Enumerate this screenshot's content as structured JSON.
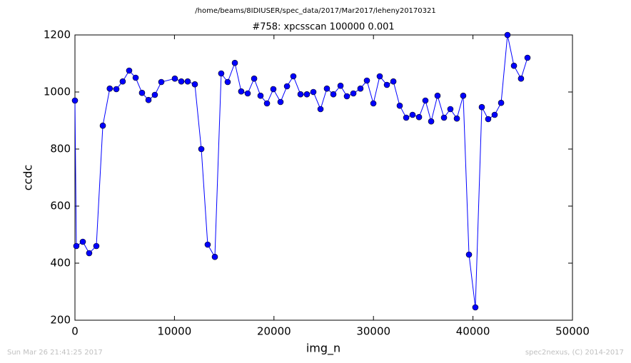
{
  "chart_data": {
    "type": "line",
    "header": "/home/beams/8IDIUSER/spec_data/2017/Mar2017/leheny20170321",
    "title": "#758: xpcsscan 100000 0.001",
    "xlabel": "img_n",
    "ylabel": "ccdc",
    "footer_left": "Sun Mar 26 21:41:25 2017",
    "footer_right": "spec2nexus, (C) 2014-2017",
    "color": "#0000ff",
    "x": [
      0,
      140,
      790,
      1430,
      2150,
      2800,
      3500,
      4160,
      4800,
      5450,
      6100,
      6740,
      7390,
      8030,
      8680,
      10040,
      10690,
      11330,
      12050,
      12700,
      13340,
      14060,
      14700,
      15350,
      16070,
      16710,
      17360,
      18010,
      18650,
      19300,
      19940,
      20660,
      21310,
      21950,
      22670,
      23310,
      23960,
      24680,
      25320,
      25970,
      26690,
      27330,
      27980,
      28690,
      29340,
      29990,
      30630,
      31350,
      32000,
      32640,
      33290,
      33930,
      34580,
      35220,
      35800,
      36440,
      37090,
      37730,
      38380,
      39020,
      39600,
      40240,
      40890,
      41530,
      42180,
      42830,
      43470,
      44120,
      44830,
      45480
    ],
    "values": [
      970,
      460,
      475,
      435,
      460,
      882,
      1012,
      1010,
      1037,
      1075,
      1050,
      997,
      972,
      990,
      1035,
      1047,
      1037,
      1037,
      1027,
      800,
      465,
      422,
      1065,
      1035,
      1102,
      1002,
      995,
      1047,
      987,
      960,
      1010,
      965,
      1020,
      1055,
      992,
      992,
      1000,
      940,
      1012,
      992,
      1022,
      985,
      995,
      1012,
      1040,
      960,
      1055,
      1025,
      1037,
      952,
      910,
      920,
      912,
      970,
      897,
      987,
      910,
      940,
      907,
      987,
      430,
      245,
      947,
      905,
      920,
      962,
      1200,
      1092,
      1047,
      1120
    ],
    "xlim": [
      0,
      50000
    ],
    "ylim": [
      200,
      1200
    ],
    "xticks": [
      0,
      10000,
      20000,
      30000,
      40000,
      50000
    ],
    "yticks": [
      200,
      400,
      600,
      800,
      1000,
      1200
    ]
  }
}
